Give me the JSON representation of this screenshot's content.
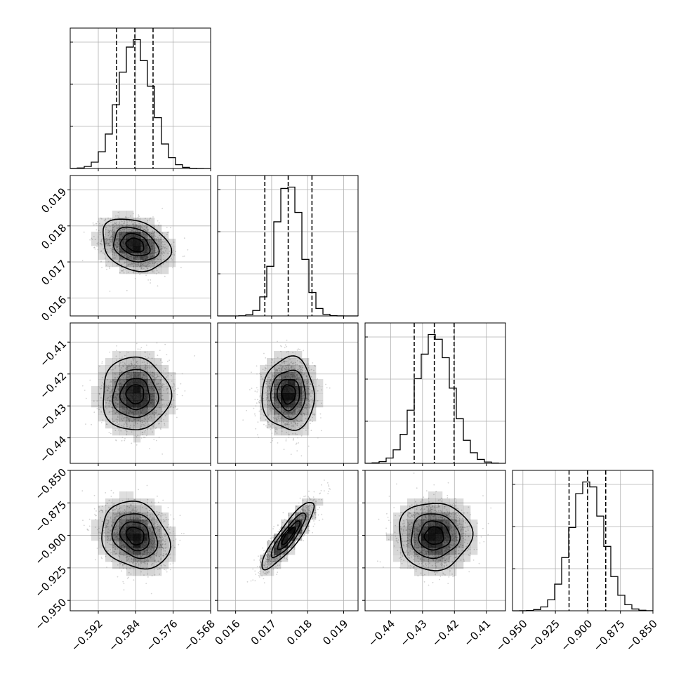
{
  "chart_data": {
    "type": "corner",
    "title": "",
    "grid": true,
    "colors": {
      "line": "#000000",
      "hist2d": "#000000",
      "points": "#9e9e9e",
      "grid": "#b0b0b0"
    },
    "parameters": [
      {
        "range": [
          -0.598,
          -0.568
        ],
        "ticks": [
          -0.592,
          -0.584,
          -0.576,
          -0.568
        ],
        "tick_labels": [
          "−0.592",
          "−0.584",
          "−0.576",
          "−0.568"
        ],
        "mean": -0.5841,
        "sigma": 0.0035,
        "quantiles": [
          -0.5881,
          -0.5842,
          -0.5803
        ]
      },
      {
        "range": [
          0.0155,
          0.0194
        ],
        "ticks": [
          0.016,
          0.017,
          0.018,
          0.019
        ],
        "tick_labels": [
          "0.016",
          "0.017",
          "0.018",
          "0.019"
        ],
        "mean": 0.01747,
        "sigma": 0.00035,
        "quantiles": [
          0.01681,
          0.01746,
          0.01812
        ]
      },
      {
        "range": [
          -0.448,
          -0.404
        ],
        "ticks": [
          -0.44,
          -0.43,
          -0.42,
          -0.41
        ],
        "tick_labels": [
          "−0.44",
          "−0.43",
          "−0.42",
          "−0.41"
        ],
        "mean": -0.4263,
        "sigma": 0.0055,
        "quantiles": [
          -0.4326,
          -0.4263,
          -0.4201
        ]
      },
      {
        "range": [
          -0.958,
          -0.85
        ],
        "ticks": [
          -0.95,
          -0.925,
          -0.9,
          -0.875,
          -0.85
        ],
        "tick_labels": [
          "−0.950",
          "−0.925",
          "−0.900",
          "−0.875",
          "−0.850"
        ],
        "mean": -0.9003,
        "sigma": 0.0125,
        "quantiles": [
          -0.9145,
          -0.9003,
          -0.8863
        ]
      }
    ],
    "correlations": [
      {
        "i": 1,
        "j": 0,
        "rho": -0.25
      },
      {
        "i": 2,
        "j": 0,
        "rho": 0.0
      },
      {
        "i": 2,
        "j": 1,
        "rho": 0.0
      },
      {
        "i": 3,
        "j": 0,
        "rho": -0.2
      },
      {
        "i": 3,
        "j": 1,
        "rho": 0.88
      },
      {
        "i": 3,
        "j": 2,
        "rho": 0.0
      }
    ],
    "diagonal_histogram_bins": 20,
    "histogram_2d_bins": 20,
    "contour_levels_sigma": [
      0.5,
      1.0,
      1.5,
      2.0
    ]
  }
}
